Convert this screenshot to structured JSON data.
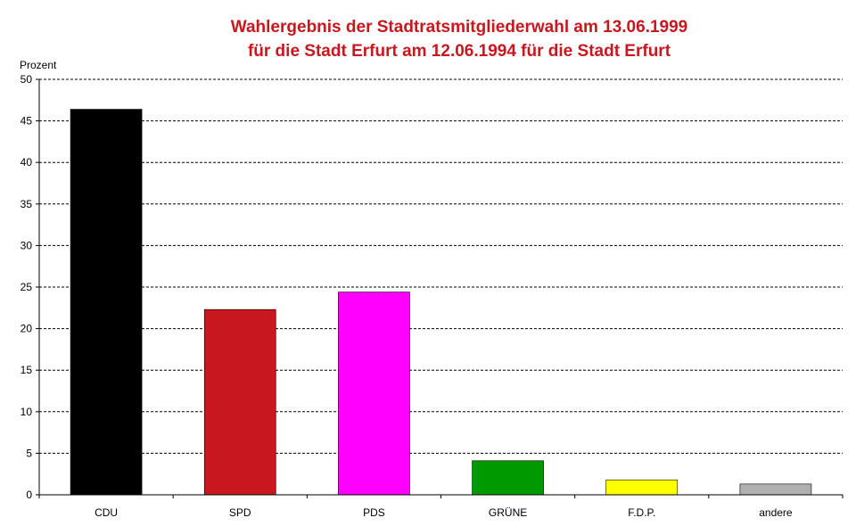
{
  "chart_data": {
    "type": "bar",
    "title": [
      "Wahlergebnis der Stadtratsmitgliederwahl am 13.06.1999",
      "für die Stadt Erfurt am 12.06.1994 für die Stadt Erfurt"
    ],
    "ylabel": "Prozent",
    "xlabel": "",
    "ylim": [
      0,
      50
    ],
    "yticks": [
      0,
      5,
      10,
      15,
      20,
      25,
      30,
      35,
      40,
      45,
      50
    ],
    "grid": true,
    "categories": [
      "CDU",
      "SPD",
      "PDS",
      "GRÜNE",
      "F.D.P.",
      "andere"
    ],
    "values": [
      46.4,
      22.3,
      24.4,
      4.1,
      1.8,
      1.3
    ],
    "colors": [
      "#000000",
      "#c8171e",
      "#ff00ff",
      "#009900",
      "#ffff00",
      "#b0b0b0"
    ]
  }
}
